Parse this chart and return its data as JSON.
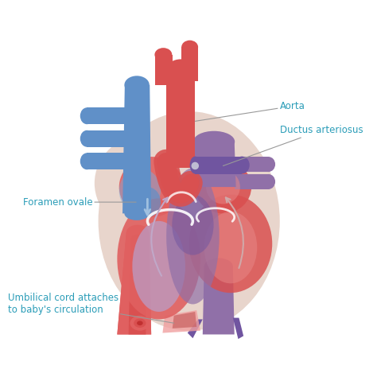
{
  "background_color": "#ffffff",
  "label_color": "#2b9db8",
  "line_color": "#999999",
  "labels": {
    "aorta": "Aorta",
    "ductus": "Ductus arteriosus",
    "foramen": "Foramen ovale",
    "umbilical": "Umbilical cord attaches\nto baby's circulation"
  },
  "colors": {
    "red": "#d95050",
    "red_med": "#e06060",
    "red_light": "#e88888",
    "red_pale": "#f0a0a0",
    "blue": "#6090c8",
    "blue_dark": "#4878b8",
    "blue_light": "#80a8d8",
    "purple": "#9070a8",
    "purple_dark": "#7055a0",
    "purple_med": "#a080b8",
    "purple_light": "#b8a0cc",
    "skin": "#e8d5cc",
    "skin_dark": "#d8c5bc",
    "white": "#ffffff"
  }
}
